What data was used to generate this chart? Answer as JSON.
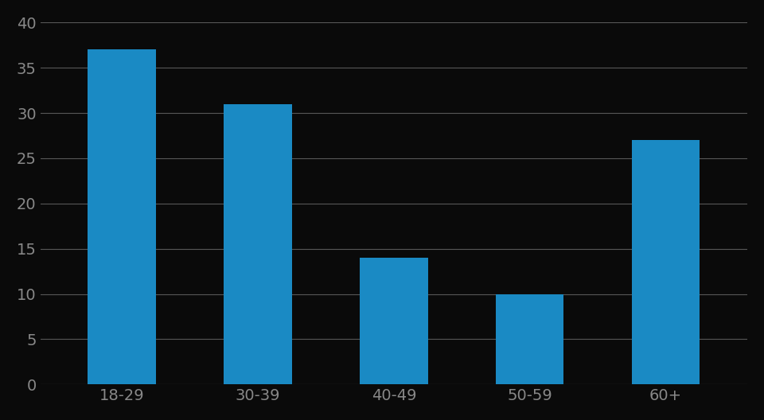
{
  "categories": [
    "18-29",
    "30-39",
    "40-49",
    "50-59",
    "60+"
  ],
  "values": [
    37,
    31,
    14,
    10,
    27
  ],
  "bar_color": "#1a8ac4",
  "background_color": "#0a0a0a",
  "text_color": "#888888",
  "grid_color": "#cccccc",
  "ylim": [
    0,
    40
  ],
  "yticks": [
    0,
    5,
    10,
    15,
    20,
    25,
    30,
    35,
    40
  ],
  "bar_width": 0.5,
  "tick_fontsize": 14
}
